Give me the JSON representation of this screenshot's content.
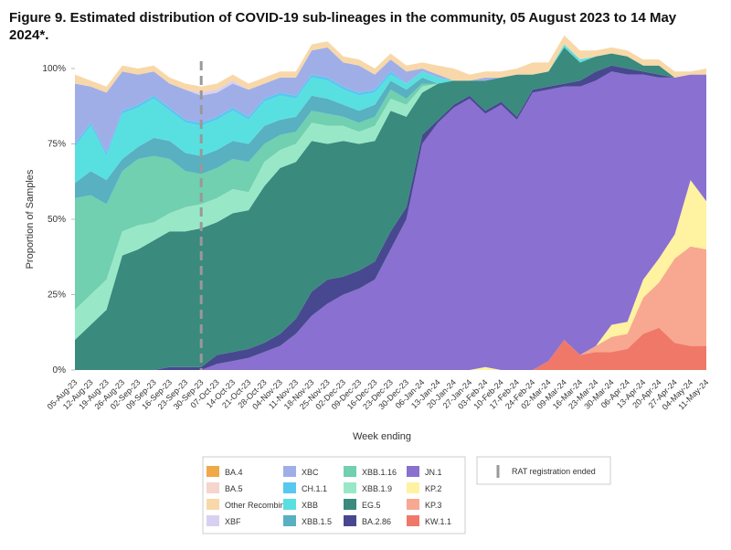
{
  "chart_data": {
    "type": "stacked_area",
    "title": "Figure 9. Estimated distribution of COVID-19 sub-lineages in the community, 05 August 2023 to 14 May 2024*.",
    "x_label": "Week ending",
    "y_label": "Proportion of Samples",
    "ylim": [
      0,
      100
    ],
    "yticks": [
      {
        "value": 0,
        "label": "0%"
      },
      {
        "value": 25,
        "label": "25%"
      },
      {
        "value": 50,
        "label": "50%"
      },
      {
        "value": 75,
        "label": "75%"
      },
      {
        "value": 100,
        "label": "100%"
      }
    ],
    "categories": [
      "05-Aug-23",
      "12-Aug-23",
      "19-Aug-23",
      "26-Aug-23",
      "02-Sep-23",
      "09-Sep-23",
      "16-Sep-23",
      "23-Sep-23",
      "30-Sep-23",
      "07-Oct-23",
      "14-Oct-23",
      "21-Oct-23",
      "28-Oct-23",
      "04-Nov-23",
      "11-Nov-23",
      "18-Nov-23",
      "25-Nov-23",
      "02-Dec-23",
      "09-Dec-23",
      "16-Dec-23",
      "23-Dec-23",
      "30-Dec-23",
      "06-Jan-24",
      "13-Jan-24",
      "20-Jan-24",
      "27-Jan-24",
      "03-Feb-24",
      "10-Feb-24",
      "17-Feb-24",
      "24-Feb-24",
      "02-Mar-24",
      "09-Mar-24",
      "16-Mar-24",
      "23-Mar-24",
      "30-Mar-24",
      "06-Apr-24",
      "13-Apr-24",
      "20-Apr-24",
      "27-Apr-24",
      "04-May-24",
      "11-May-24"
    ],
    "annotation": {
      "x": "30-Sep-23",
      "label": "RAT registration ended"
    },
    "series": [
      {
        "name": "BA.4",
        "color": "#f0a848",
        "values": [
          0,
          0,
          0,
          0,
          0,
          0,
          0,
          0,
          0,
          0,
          0,
          0,
          0,
          0,
          0,
          0,
          0,
          0,
          0,
          0,
          0,
          0,
          0,
          0,
          0,
          0,
          0,
          0,
          0,
          0,
          0,
          0,
          0,
          0,
          0,
          0,
          0,
          0,
          0,
          0,
          0
        ]
      },
      {
        "name": "BA.5",
        "color": "#f5d5cc",
        "values": [
          0,
          0,
          0,
          0,
          0,
          0,
          0,
          0,
          0,
          0,
          0,
          0,
          0,
          0,
          0,
          0,
          0,
          0,
          0,
          0,
          0,
          0,
          0,
          0,
          0,
          0,
          0,
          0,
          0,
          0,
          0,
          0,
          0,
          0,
          0,
          0,
          0,
          0,
          0,
          0,
          0
        ]
      },
      {
        "name": "Other Recombinant",
        "color": "#f8d8a8",
        "values": [
          3,
          2,
          2,
          2,
          2,
          2,
          2,
          2,
          2,
          2,
          2,
          2,
          2,
          2,
          2,
          2,
          2,
          2,
          2,
          2,
          2,
          2,
          2,
          3,
          4,
          2,
          2,
          2,
          2,
          4,
          3,
          3,
          3,
          2,
          2,
          2,
          2,
          2,
          2,
          1,
          2
        ]
      },
      {
        "name": "XBF",
        "color": "#d8d0f0",
        "values": [
          0,
          0,
          0,
          0,
          0,
          0,
          0,
          0,
          1,
          1,
          1,
          0,
          0,
          0,
          0,
          0,
          0,
          0,
          0,
          0,
          0,
          0,
          0,
          0,
          0,
          0,
          0,
          0,
          0,
          0,
          0,
          0,
          0,
          0,
          0,
          0,
          0,
          0,
          0,
          0,
          0
        ]
      },
      {
        "name": "XBC",
        "color": "#a0aee8",
        "values": [
          20,
          12,
          20,
          13,
          10,
          8,
          8,
          10,
          9,
          8,
          8,
          9,
          5,
          5,
          6,
          8,
          10,
          8,
          9,
          5,
          4,
          4,
          1,
          1,
          0,
          0,
          1,
          0,
          0,
          0,
          0,
          0,
          0,
          0,
          0,
          0,
          0,
          0,
          0,
          0,
          0
        ]
      },
      {
        "name": "CH.1.1",
        "color": "#58c8f0",
        "values": [
          1,
          1,
          1,
          1,
          1,
          1,
          1,
          1,
          1,
          1,
          1,
          1,
          1,
          1,
          1,
          1,
          1,
          1,
          1,
          1,
          1,
          0,
          0,
          0,
          0,
          0,
          0,
          0,
          0,
          0,
          0,
          0,
          0,
          0,
          0,
          0,
          0,
          0,
          0,
          0,
          0
        ]
      },
      {
        "name": "XBB",
        "color": "#58e0e0",
        "values": [
          12,
          15,
          8,
          15,
          13,
          13,
          10,
          10,
          10,
          10,
          10,
          8,
          8,
          8,
          6,
          6,
          6,
          5,
          5,
          4,
          2,
          2,
          2,
          2,
          0,
          0,
          0,
          0,
          0,
          0,
          0,
          1,
          1,
          0,
          0,
          0,
          0,
          0,
          0,
          0,
          0
        ]
      },
      {
        "name": "XBB.1.5",
        "color": "#58b0c0",
        "values": [
          5,
          8,
          8,
          4,
          4,
          6,
          6,
          6,
          6,
          6,
          6,
          6,
          6,
          5,
          5,
          5,
          5,
          4,
          4,
          4,
          3,
          3,
          2,
          0,
          0,
          0,
          0,
          0,
          0,
          0,
          0,
          0,
          0,
          0,
          0,
          0,
          0,
          0,
          0,
          0,
          0
        ]
      },
      {
        "name": "XBB.1.16",
        "color": "#70d0b0",
        "values": [
          37,
          33,
          25,
          20,
          22,
          22,
          18,
          12,
          10,
          10,
          10,
          10,
          6,
          5,
          4,
          4,
          4,
          3,
          3,
          3,
          3,
          2,
          1,
          0,
          0,
          0,
          0,
          0,
          0,
          0,
          0,
          0,
          0,
          0,
          0,
          0,
          0,
          0,
          0,
          0,
          0
        ]
      },
      {
        "name": "XBB.1.9",
        "color": "#98e8c8",
        "values": [
          10,
          10,
          10,
          8,
          8,
          6,
          6,
          8,
          8,
          8,
          8,
          6,
          8,
          6,
          6,
          6,
          6,
          5,
          4,
          5,
          4,
          4,
          2,
          0,
          0,
          0,
          0,
          0,
          0,
          0,
          0,
          0,
          0,
          0,
          0,
          0,
          0,
          0,
          0,
          0,
          0
        ]
      },
      {
        "name": "EG.5",
        "color": "#3a8a7e",
        "values": [
          10,
          15,
          20,
          38,
          40,
          43,
          45,
          45,
          46,
          44,
          46,
          46,
          52,
          55,
          52,
          50,
          45,
          45,
          42,
          40,
          40,
          30,
          14,
          12,
          8,
          5,
          10,
          8,
          14,
          5,
          5,
          12,
          6,
          5,
          4,
          4,
          2,
          3,
          0,
          0,
          0
        ]
      },
      {
        "name": "BA.2.86",
        "color": "#484890",
        "values": [
          0,
          0,
          0,
          0,
          0,
          0,
          1,
          1,
          1,
          3,
          3,
          3,
          3,
          4,
          5,
          8,
          8,
          6,
          6,
          6,
          6,
          4,
          3,
          1,
          1,
          1,
          1,
          1,
          1,
          1,
          1,
          1,
          2,
          3,
          2,
          2,
          1,
          1,
          0,
          0,
          0
        ]
      },
      {
        "name": "JN.1",
        "color": "#8a70d0",
        "values": [
          0,
          0,
          0,
          0,
          0,
          0,
          0,
          0,
          0,
          2,
          3,
          4,
          6,
          8,
          12,
          18,
          22,
          25,
          27,
          30,
          40,
          50,
          75,
          82,
          87,
          90,
          84,
          88,
          83,
          92,
          90,
          84,
          89,
          88,
          84,
          82,
          68,
          60,
          52,
          35,
          42
        ]
      },
      {
        "name": "KP.2",
        "color": "#fff2a0",
        "values": [
          0,
          0,
          0,
          0,
          0,
          0,
          0,
          0,
          0,
          0,
          0,
          0,
          0,
          0,
          0,
          0,
          0,
          0,
          0,
          0,
          0,
          0,
          0,
          0,
          0,
          0,
          1,
          0,
          0,
          0,
          0,
          0,
          0,
          0,
          4,
          4,
          6,
          8,
          8,
          22,
          16
        ]
      },
      {
        "name": "KP.3",
        "color": "#f8a890",
        "values": [
          0,
          0,
          0,
          0,
          0,
          0,
          0,
          0,
          0,
          0,
          0,
          0,
          0,
          0,
          0,
          0,
          0,
          0,
          0,
          0,
          0,
          0,
          0,
          0,
          0,
          0,
          0,
          0,
          0,
          0,
          0,
          0,
          0,
          2,
          5,
          5,
          12,
          15,
          28,
          33,
          32
        ]
      },
      {
        "name": "KW.1.1",
        "color": "#f07868",
        "values": [
          0,
          0,
          0,
          0,
          0,
          0,
          0,
          0,
          0,
          0,
          0,
          0,
          0,
          0,
          0,
          0,
          0,
          0,
          0,
          0,
          0,
          0,
          0,
          0,
          0,
          0,
          0,
          0,
          0,
          0,
          3,
          10,
          5,
          6,
          6,
          7,
          12,
          14,
          9,
          8,
          8
        ]
      }
    ]
  }
}
